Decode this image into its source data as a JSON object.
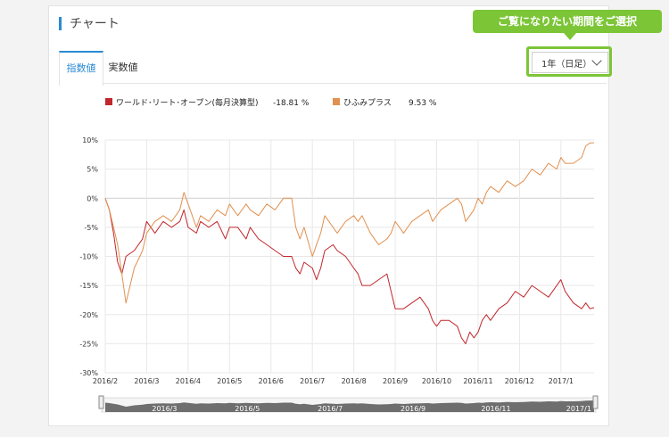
{
  "section": {
    "title": "チャート"
  },
  "tabs": [
    {
      "label": "指数値",
      "active": true
    },
    {
      "label": "実数値",
      "active": false
    }
  ],
  "period": {
    "selected": "1年（日足）",
    "callout": "ご覧になりたい期間をご選択"
  },
  "colors": {
    "accent": "#2a8ad4",
    "callout": "#7cc537",
    "series1": "#c1272d",
    "series2": "#e1904f"
  },
  "chart_data": {
    "type": "line",
    "title": "",
    "xlabel": "",
    "ylabel": "",
    "ylim": [
      -30,
      10
    ],
    "yticks": [
      10,
      5,
      0,
      -5,
      -10,
      -15,
      -20,
      -25,
      -30
    ],
    "ytick_labels": [
      "10%",
      "5%",
      "0%",
      "-5%",
      "-10%",
      "-15%",
      "-20%",
      "-25%",
      "-30%"
    ],
    "xticks": [
      "2016/2",
      "2016/3",
      "2016/4",
      "2016/5",
      "2016/6",
      "2016/7",
      "2016/8",
      "2016/9",
      "2016/10",
      "2016/11",
      "2016/12",
      "2017/1"
    ],
    "navigator_labels": [
      "2016/3",
      "2016/5",
      "2016/7",
      "2016/9",
      "2016/11",
      "2017/1"
    ],
    "grid": true,
    "legend_position": "top-left",
    "series": [
      {
        "name": "ワールド･リート･オープン(毎月決算型)",
        "return_label": "-18.81 %",
        "color": "#c1272d",
        "points": [
          [
            0,
            0
          ],
          [
            0.1,
            -2
          ],
          [
            0.2,
            -6
          ],
          [
            0.3,
            -11
          ],
          [
            0.4,
            -13
          ],
          [
            0.5,
            -10
          ],
          [
            0.7,
            -9
          ],
          [
            0.9,
            -7
          ],
          [
            1.0,
            -4
          ],
          [
            1.2,
            -6
          ],
          [
            1.4,
            -4
          ],
          [
            1.6,
            -5
          ],
          [
            1.8,
            -4
          ],
          [
            1.9,
            -2
          ],
          [
            2.0,
            -5
          ],
          [
            2.2,
            -6
          ],
          [
            2.3,
            -4
          ],
          [
            2.5,
            -5
          ],
          [
            2.7,
            -4
          ],
          [
            2.9,
            -7
          ],
          [
            3.0,
            -5
          ],
          [
            3.2,
            -5
          ],
          [
            3.4,
            -7
          ],
          [
            3.5,
            -5
          ],
          [
            3.7,
            -7
          ],
          [
            3.9,
            -8
          ],
          [
            4.1,
            -9
          ],
          [
            4.3,
            -10
          ],
          [
            4.5,
            -10
          ],
          [
            4.6,
            -12
          ],
          [
            4.7,
            -13
          ],
          [
            4.8,
            -11
          ],
          [
            5.0,
            -12
          ],
          [
            5.1,
            -14
          ],
          [
            5.2,
            -12
          ],
          [
            5.3,
            -9
          ],
          [
            5.5,
            -8
          ],
          [
            5.6,
            -9
          ],
          [
            5.8,
            -10
          ],
          [
            6.0,
            -12
          ],
          [
            6.1,
            -13
          ],
          [
            6.2,
            -15
          ],
          [
            6.4,
            -15
          ],
          [
            6.6,
            -14
          ],
          [
            6.8,
            -13
          ],
          [
            6.9,
            -16
          ],
          [
            7.0,
            -19
          ],
          [
            7.2,
            -19
          ],
          [
            7.4,
            -18
          ],
          [
            7.6,
            -17
          ],
          [
            7.8,
            -19
          ],
          [
            7.9,
            -21
          ],
          [
            8.0,
            -22
          ],
          [
            8.1,
            -21
          ],
          [
            8.3,
            -21
          ],
          [
            8.5,
            -22
          ],
          [
            8.6,
            -24
          ],
          [
            8.7,
            -25
          ],
          [
            8.8,
            -23
          ],
          [
            8.9,
            -24
          ],
          [
            9.0,
            -23
          ],
          [
            9.1,
            -21
          ],
          [
            9.2,
            -20
          ],
          [
            9.3,
            -21
          ],
          [
            9.5,
            -19
          ],
          [
            9.7,
            -18
          ],
          [
            9.9,
            -16
          ],
          [
            10.1,
            -17
          ],
          [
            10.3,
            -15
          ],
          [
            10.5,
            -16
          ],
          [
            10.7,
            -17
          ],
          [
            10.9,
            -15
          ],
          [
            11.0,
            -14
          ],
          [
            11.1,
            -16
          ],
          [
            11.3,
            -18
          ],
          [
            11.5,
            -19
          ],
          [
            11.6,
            -18
          ],
          [
            11.7,
            -19
          ],
          [
            11.8,
            -18.8
          ]
        ]
      },
      {
        "name": "ひふみプラス",
        "return_label": "9.53 %",
        "color": "#e1904f",
        "points": [
          [
            0,
            0
          ],
          [
            0.1,
            -2
          ],
          [
            0.2,
            -5
          ],
          [
            0.3,
            -8
          ],
          [
            0.4,
            -13
          ],
          [
            0.5,
            -18
          ],
          [
            0.7,
            -12
          ],
          [
            0.9,
            -9
          ],
          [
            1.0,
            -6
          ],
          [
            1.2,
            -4
          ],
          [
            1.4,
            -3
          ],
          [
            1.6,
            -4
          ],
          [
            1.8,
            -2
          ],
          [
            1.9,
            1
          ],
          [
            2.0,
            -1
          ],
          [
            2.2,
            -5
          ],
          [
            2.3,
            -3
          ],
          [
            2.5,
            -4
          ],
          [
            2.7,
            -2
          ],
          [
            2.9,
            -3
          ],
          [
            3.0,
            -1
          ],
          [
            3.2,
            -3
          ],
          [
            3.4,
            -1
          ],
          [
            3.5,
            -2
          ],
          [
            3.7,
            -3
          ],
          [
            3.9,
            -1
          ],
          [
            4.1,
            -2
          ],
          [
            4.3,
            0
          ],
          [
            4.5,
            0
          ],
          [
            4.6,
            -5
          ],
          [
            4.7,
            -7
          ],
          [
            4.8,
            -5
          ],
          [
            5.0,
            -10
          ],
          [
            5.1,
            -8
          ],
          [
            5.2,
            -6
          ],
          [
            5.3,
            -3
          ],
          [
            5.5,
            -5
          ],
          [
            5.6,
            -6
          ],
          [
            5.8,
            -4
          ],
          [
            6.0,
            -3
          ],
          [
            6.1,
            -4
          ],
          [
            6.2,
            -3
          ],
          [
            6.4,
            -6
          ],
          [
            6.6,
            -8
          ],
          [
            6.8,
            -7
          ],
          [
            6.9,
            -6
          ],
          [
            7.0,
            -4
          ],
          [
            7.2,
            -6
          ],
          [
            7.4,
            -4
          ],
          [
            7.6,
            -3
          ],
          [
            7.8,
            -2
          ],
          [
            7.9,
            -4
          ],
          [
            8.0,
            -3
          ],
          [
            8.1,
            -2
          ],
          [
            8.3,
            -1
          ],
          [
            8.5,
            0
          ],
          [
            8.6,
            -1
          ],
          [
            8.7,
            -4
          ],
          [
            8.8,
            -3
          ],
          [
            8.9,
            -2
          ],
          [
            9.0,
            0
          ],
          [
            9.1,
            -1
          ],
          [
            9.2,
            1
          ],
          [
            9.3,
            2
          ],
          [
            9.5,
            1
          ],
          [
            9.7,
            3
          ],
          [
            9.9,
            2
          ],
          [
            10.1,
            3
          ],
          [
            10.3,
            5
          ],
          [
            10.5,
            4
          ],
          [
            10.7,
            6
          ],
          [
            10.9,
            5
          ],
          [
            11.0,
            7
          ],
          [
            11.1,
            6
          ],
          [
            11.3,
            6
          ],
          [
            11.5,
            7
          ],
          [
            11.6,
            9
          ],
          [
            11.7,
            9.5
          ],
          [
            11.8,
            9.53
          ]
        ]
      }
    ]
  }
}
